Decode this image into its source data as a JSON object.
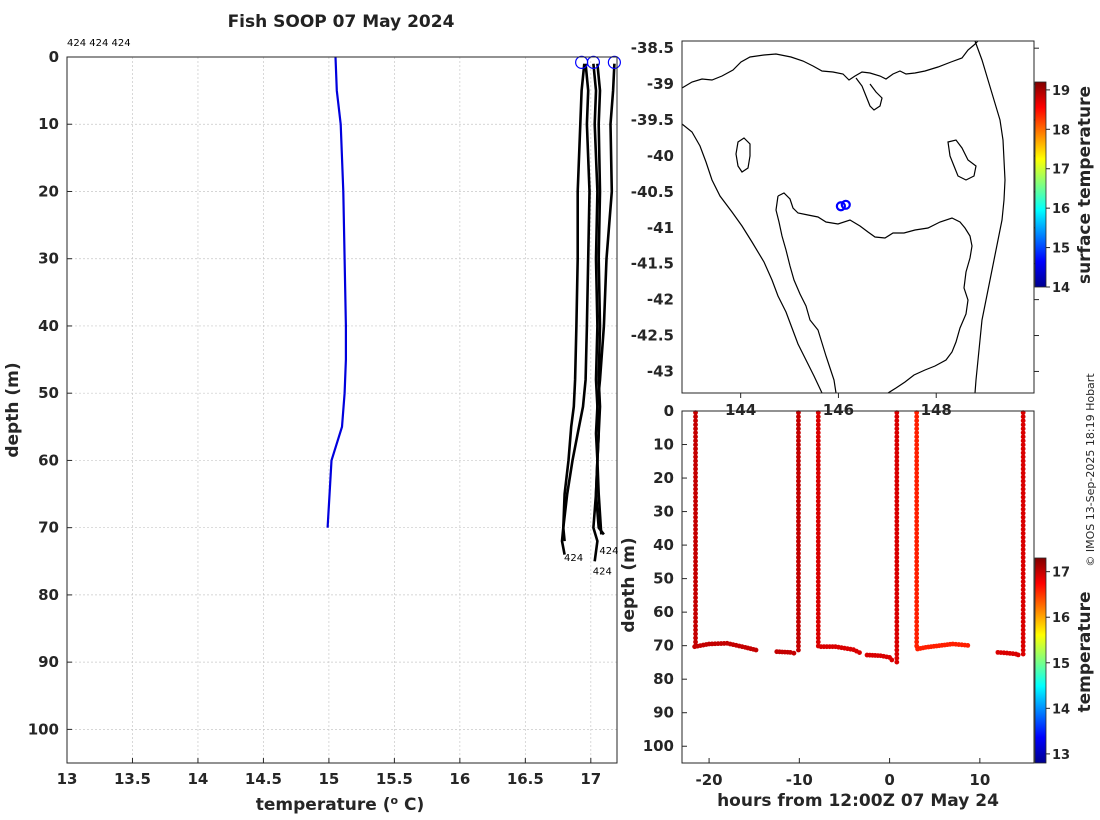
{
  "figure": {
    "title": "Fish SOOP 07 May 2024",
    "top_labels": "424 424 424",
    "credit": "© IMOS 13-Sep-2025 18:19 Hobart"
  },
  "chart_data": [
    {
      "id": "profile",
      "type": "line",
      "xlabel": "temperature (",
      "xlabel_sup": "o",
      "xlabel_tail": " C)",
      "ylabel": "depth (m)",
      "xlim": [
        13,
        17.2
      ],
      "ylim": [
        0,
        105
      ],
      "xticks": [
        "13",
        "13.5",
        "14",
        "14.5",
        "15",
        "15.5",
        "16",
        "16.5",
        "17"
      ],
      "yticks": [
        "0",
        "10",
        "20",
        "30",
        "40",
        "50",
        "60",
        "70",
        "80",
        "90",
        "100"
      ],
      "annotations": [
        "424",
        "424",
        "424"
      ],
      "series": [
        {
          "name": "blue profile",
          "color": "#0000dd",
          "temp": [
            15.05,
            15.06,
            15.09,
            15.11,
            15.12,
            15.13,
            15.13,
            15.12,
            15.1,
            15.02,
            14.99
          ],
          "depth": [
            0,
            5,
            10,
            20,
            30,
            40,
            45,
            50,
            55,
            60,
            70
          ]
        },
        {
          "name": "cast 1",
          "color": "#000000",
          "temp": [
            16.95,
            16.93,
            16.92,
            16.9,
            16.9,
            16.89,
            16.88,
            16.87,
            16.85,
            16.83,
            16.8,
            16.79,
            16.78,
            16.8
          ],
          "depth": [
            1,
            5,
            10,
            20,
            30,
            40,
            48,
            52,
            55,
            60,
            65,
            70,
            72,
            74
          ]
        },
        {
          "name": "cast 2",
          "color": "#000000",
          "temp": [
            16.96,
            16.98,
            16.97,
            16.99,
            16.98,
            16.97,
            16.96,
            16.94,
            16.9,
            16.86,
            16.82,
            16.79,
            16.8
          ],
          "depth": [
            1,
            5,
            10,
            20,
            30,
            40,
            48,
            52,
            56,
            60,
            65,
            70,
            72
          ]
        },
        {
          "name": "cast 3",
          "color": "#000000",
          "temp": [
            17.02,
            17.04,
            17.03,
            17.05,
            17.04,
            17.05,
            17.04,
            17.05,
            17.04,
            17.05,
            17.04,
            17.02,
            17.05,
            17.03
          ],
          "depth": [
            1,
            5,
            10,
            20,
            30,
            40,
            48,
            52,
            56,
            60,
            65,
            70,
            72,
            75
          ]
        },
        {
          "name": "cast 4",
          "color": "#000000",
          "temp": [
            17.05,
            17.07,
            17.06,
            17.07,
            17.06,
            17.07,
            17.06,
            17.07,
            17.06,
            17.05,
            17.04,
            17.06,
            17.1
          ],
          "depth": [
            1,
            5,
            10,
            20,
            30,
            40,
            48,
            52,
            56,
            60,
            65,
            70,
            71
          ]
        },
        {
          "name": "cast 5",
          "color": "#000000",
          "temp": [
            17.18,
            17.17,
            17.15,
            17.16,
            17.12,
            17.1,
            17.07,
            17.05,
            17.06,
            17.05,
            17.06,
            17.08
          ],
          "depth": [
            1,
            5,
            10,
            20,
            30,
            40,
            48,
            52,
            56,
            60,
            65,
            71
          ]
        }
      ],
      "surface_markers": [
        16.93,
        17.02,
        17.18
      ]
    },
    {
      "id": "map",
      "type": "scatter",
      "xticks": [
        "144",
        "146",
        "148"
      ],
      "yticks": [
        "-38.5",
        "-39",
        "-39.5",
        "-40",
        "-40.5",
        "-41",
        "-41.5",
        "-42",
        "-42.5",
        "-43"
      ],
      "xlim": [
        142.8,
        150.0
      ],
      "ylim": [
        -43.3,
        -38.4
      ],
      "points": [
        {
          "lon": 146.05,
          "lat": -40.7
        },
        {
          "lon": 146.15,
          "lat": -40.68
        }
      ],
      "colorbar": {
        "label": "surface temperature",
        "ticks": [
          "14",
          "15",
          "16",
          "17",
          "18",
          "19"
        ],
        "range": [
          14,
          19.2
        ]
      }
    },
    {
      "id": "section",
      "type": "scatter",
      "xlabel": "hours from 12:00Z 07 May 24",
      "ylabel": "depth (m)",
      "xlim": [
        -23,
        16
      ],
      "ylim": [
        0,
        105
      ],
      "xticks": [
        "-20",
        "-10",
        "0",
        "10"
      ],
      "yticks": [
        "0",
        "10",
        "20",
        "30",
        "40",
        "50",
        "60",
        "70",
        "80",
        "90",
        "100"
      ],
      "casts": [
        {
          "t0": -21.7,
          "bottom": [
            [
              -21.6,
              70.3
            ],
            [
              -20,
              69.5
            ],
            [
              -18,
              69.3
            ],
            [
              -16,
              70.5
            ],
            [
              -14.5,
              71.5
            ]
          ],
          "down_t": -21.5,
          "up": false,
          "temp": 17.0
        },
        {
          "t0": -10.5,
          "bottom": [
            [
              -12.5,
              71.8
            ],
            [
              -11,
              72
            ],
            [
              -10.2,
              72.5
            ]
          ],
          "down_t": -10.1,
          "up": true,
          "temp": 17.0
        },
        {
          "t0": -7.8,
          "bottom": [
            [
              -7.6,
              70.3
            ],
            [
              -6,
              70.3
            ],
            [
              -4,
              71.2
            ],
            [
              -3,
              72.5
            ]
          ],
          "down_t": -7.9,
          "up": false,
          "temp": 16.9
        },
        {
          "t0": 0.8,
          "bottom": [
            [
              -2.5,
              72.8
            ],
            [
              -1,
              73
            ],
            [
              0,
              73.5
            ],
            [
              0.5,
              75
            ]
          ],
          "down_t": 0.8,
          "up": true,
          "temp": 16.9
        },
        {
          "t0": 3.0,
          "bottom": [
            [
              3.1,
              71
            ],
            [
              4,
              70.5
            ],
            [
              5.5,
              70
            ],
            [
              7,
              69.5
            ],
            [
              9,
              70
            ]
          ],
          "down_t": 3.0,
          "up": false,
          "temp": 16.6
        },
        {
          "t0": 14.8,
          "bottom": [
            [
              12,
              72
            ],
            [
              13,
              72.2
            ],
            [
              14,
              72.5
            ],
            [
              14.5,
              73
            ]
          ],
          "down_t": 14.8,
          "up": true,
          "temp": 16.9
        }
      ],
      "colorbar": {
        "label": "temperature",
        "ticks": [
          "13",
          "14",
          "15",
          "16",
          "17"
        ],
        "range": [
          12.8,
          17.3
        ]
      }
    }
  ]
}
